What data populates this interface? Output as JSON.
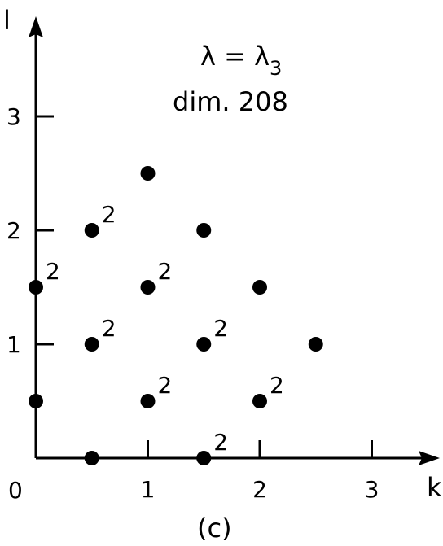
{
  "chart_data": {
    "type": "scatter",
    "title": "",
    "xlabel": "k",
    "ylabel": "l",
    "xlim": [
      0,
      3.4
    ],
    "ylim": [
      0,
      3.6
    ],
    "xticks": [
      1,
      2,
      3
    ],
    "yticks": [
      1,
      2,
      3
    ],
    "origin_label": "0",
    "annotation": {
      "line1_base": "λ = λ",
      "line1_sub": "3",
      "line2": "dim. 208"
    },
    "caption": "(c)",
    "points": [
      {
        "x": 0,
        "y": 0.5,
        "mult": ""
      },
      {
        "x": 0,
        "y": 1.5,
        "mult": "2"
      },
      {
        "x": 0.5,
        "y": 0,
        "mult": ""
      },
      {
        "x": 0.5,
        "y": 1,
        "mult": "2"
      },
      {
        "x": 0.5,
        "y": 2,
        "mult": "2"
      },
      {
        "x": 1,
        "y": 0.5,
        "mult": "2"
      },
      {
        "x": 1,
        "y": 1.5,
        "mult": "2"
      },
      {
        "x": 1,
        "y": 2.5,
        "mult": ""
      },
      {
        "x": 1.5,
        "y": 0,
        "mult": "2"
      },
      {
        "x": 1.5,
        "y": 1,
        "mult": "2"
      },
      {
        "x": 1.5,
        "y": 2,
        "mult": ""
      },
      {
        "x": 2,
        "y": 0.5,
        "mult": "2"
      },
      {
        "x": 2,
        "y": 1.5,
        "mult": ""
      },
      {
        "x": 2.5,
        "y": 1,
        "mult": ""
      }
    ],
    "grid": false,
    "marker_color": "#000000"
  }
}
